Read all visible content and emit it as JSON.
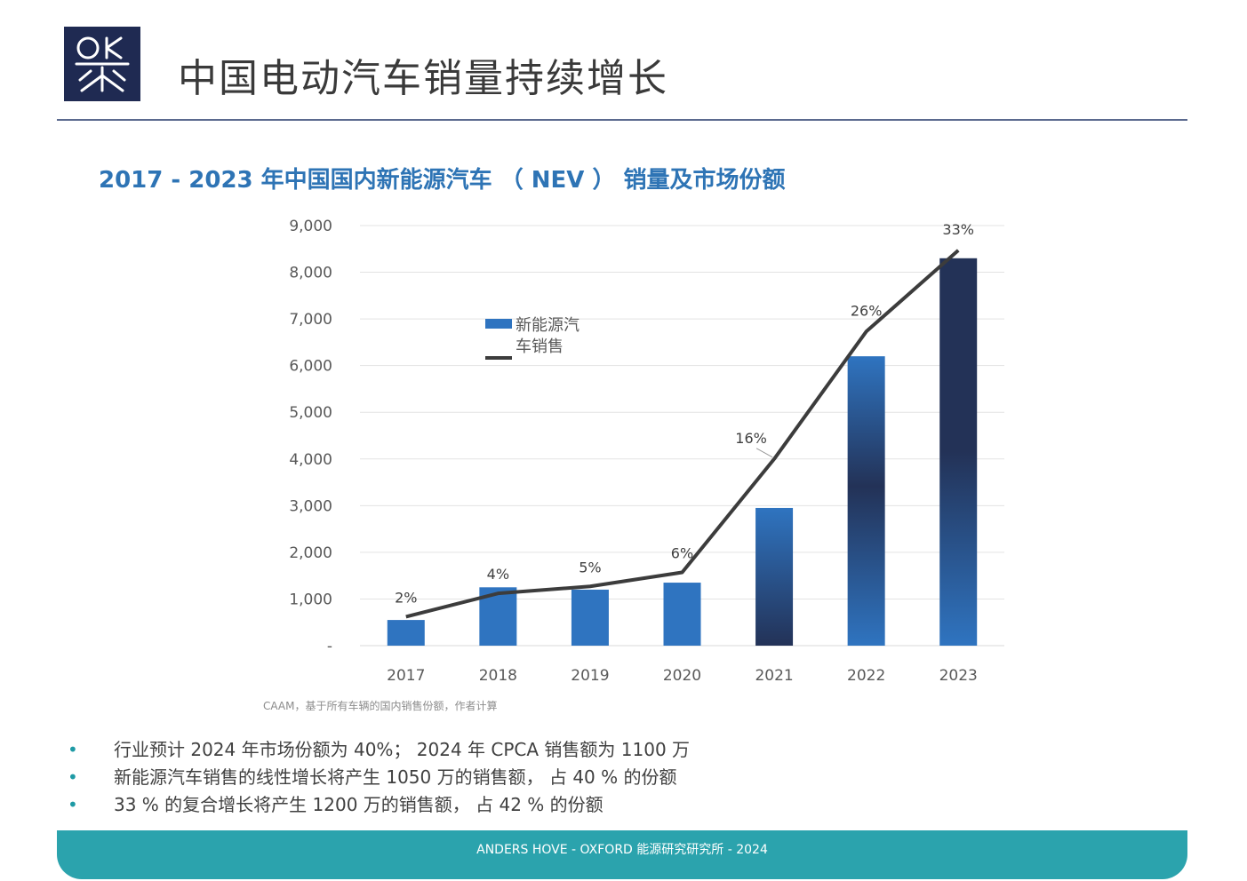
{
  "page": {
    "title": "中国电动汽车销量持续增长",
    "logo_text": "OKE"
  },
  "colors": {
    "logo_bg": "#1f2a52",
    "title_rule": "#5b6a8f",
    "chart_title": "#2e74b5",
    "bar_light": "#2f74c0",
    "bar_dark": "#233257",
    "line": "#3c3c3c",
    "footer": "#2ba3ad",
    "bullet_dot": "#1e9aa5"
  },
  "chart_data": {
    "type": "bar",
    "title": "2017 - 2023 年中国国内新能源汽车 （ NEV ） 销量及市场份额",
    "categories": [
      "2017",
      "2018",
      "2019",
      "2020",
      "2021",
      "2022",
      "2023"
    ],
    "series": [
      {
        "name": "新能源汽车销售",
        "type": "bar",
        "values": [
          550,
          1250,
          1200,
          1350,
          2950,
          6200,
          8300
        ]
      },
      {
        "type": "line",
        "values": [
          620,
          1120,
          1270,
          1570,
          4000,
          6730,
          8470
        ]
      }
    ],
    "data_labels": [
      "2%",
      "4%",
      "5%",
      "6%",
      "16%",
      "26%",
      "33%"
    ],
    "y_ticks": [
      "-",
      "1,000",
      "2,000",
      "3,000",
      "4,000",
      "5,000",
      "6,000",
      "7,000",
      "8,000",
      "9,000"
    ],
    "ylim": [
      0,
      9000
    ],
    "grid": true,
    "legend": {
      "position": "center-left",
      "label_line1": "新能源汽",
      "label_line2": "车销售"
    }
  },
  "source": "CAAM，基于所有车辆的国内销售份额，作者计算",
  "bullets": [
    {
      "dot": "•",
      "text": "行业预计 2024 年市场份额为 40%； 2024 年 CPCA 销售额为 1100 万"
    },
    {
      "dot": "•",
      "text": "新能源汽车销售的线性增长将产生 1050 万的销售额， 占 40 % 的份额"
    },
    {
      "dot": "•",
      "text": "33 % 的复合增长将产生 1200 万的销售额， 占 42 % 的份额"
    }
  ],
  "footer": {
    "text": "ANDERS HOVE - OXFORD 能源研究研究所 - 2024"
  }
}
